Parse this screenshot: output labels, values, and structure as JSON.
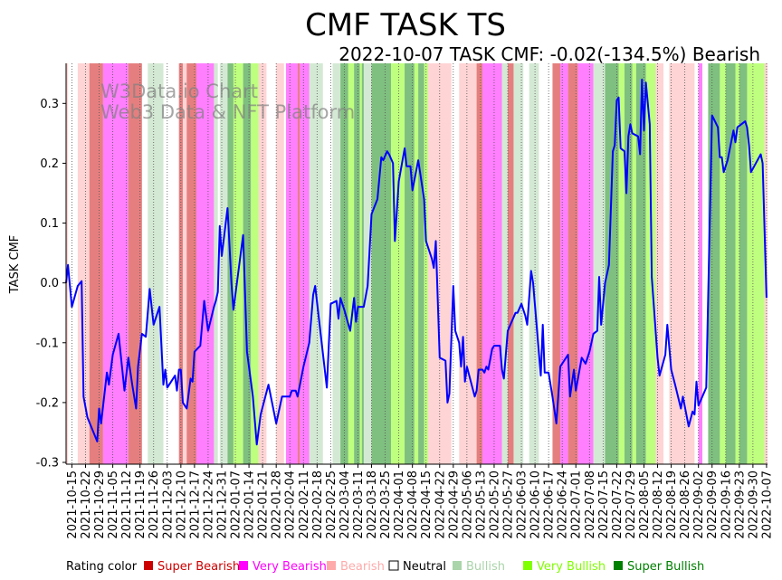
{
  "chart_data": {
    "type": "line",
    "title": "CMF TASK TS",
    "subtitle": "2022-10-07 TASK CMF: -0.02(-134.5%) Bearish",
    "ylabel": "TASK CMF",
    "xlabel": "",
    "x_unit": "day index, day 0 = 2021-10-12",
    "xlim": [
      0,
      360.5
    ],
    "ylim": [
      -0.303,
      0.367
    ],
    "yticks": [
      -0.3,
      -0.2,
      -0.1,
      0.0,
      0.1,
      0.2,
      0.3
    ],
    "ytick_labels": [
      "-0.3",
      "-0.2",
      "-0.1",
      "0.0",
      "0.1",
      "0.2",
      "0.3"
    ],
    "xtick_first_day": 3,
    "xtick_step_days": 7,
    "xtick_labels": [
      "2021-10-15",
      "2021-10-22",
      "2021-10-29",
      "2021-11-05",
      "2021-11-12",
      "2021-11-19",
      "2021-11-26",
      "2021-12-03",
      "2021-12-10",
      "2021-12-17",
      "2021-12-24",
      "2021-12-31",
      "2022-01-07",
      "2022-01-14",
      "2022-01-21",
      "2022-01-28",
      "2022-02-04",
      "2022-02-11",
      "2022-02-18",
      "2022-02-25",
      "2022-03-04",
      "2022-03-11",
      "2022-03-18",
      "2022-03-25",
      "2022-04-01",
      "2022-04-08",
      "2022-04-15",
      "2022-04-22",
      "2022-04-29",
      "2022-05-06",
      "2022-05-13",
      "2022-05-20",
      "2022-05-27",
      "2022-06-03",
      "2022-06-10",
      "2022-06-17",
      "2022-06-24",
      "2022-07-01",
      "2022-07-08",
      "2022-07-15",
      "2022-07-22",
      "2022-07-29",
      "2022-08-05",
      "2022-08-12",
      "2022-08-19",
      "2022-08-26",
      "2022-09-02",
      "2022-09-09",
      "2022-09-16",
      "2022-09-23",
      "2022-09-30",
      "2022-10-07"
    ],
    "grid": "vertical dotted at x ticks",
    "line_color": "#0000ff",
    "series": [
      {
        "name": "TASK CMF",
        "points": [
          [
            0,
            0.0
          ],
          [
            1,
            0.03
          ],
          [
            3,
            -0.04
          ],
          [
            6,
            -0.005
          ],
          [
            8,
            0.003
          ],
          [
            9,
            -0.19
          ],
          [
            11,
            -0.225
          ],
          [
            16,
            -0.265
          ],
          [
            17,
            -0.21
          ],
          [
            18,
            -0.235
          ],
          [
            21,
            -0.15
          ],
          [
            22,
            -0.17
          ],
          [
            24,
            -0.12
          ],
          [
            27,
            -0.085
          ],
          [
            30,
            -0.18
          ],
          [
            32,
            -0.125
          ],
          [
            34,
            -0.17
          ],
          [
            36,
            -0.21
          ],
          [
            37,
            -0.14
          ],
          [
            39,
            -0.085
          ],
          [
            41,
            -0.09
          ],
          [
            43,
            -0.01
          ],
          [
            45,
            -0.07
          ],
          [
            48,
            -0.04
          ],
          [
            50,
            -0.17
          ],
          [
            51,
            -0.145
          ],
          [
            52,
            -0.175
          ],
          [
            56,
            -0.155
          ],
          [
            57,
            -0.18
          ],
          [
            58,
            -0.145
          ],
          [
            59,
            -0.145
          ],
          [
            60,
            -0.2
          ],
          [
            62,
            -0.21
          ],
          [
            64,
            -0.16
          ],
          [
            65,
            -0.165
          ],
          [
            66,
            -0.115
          ],
          [
            69,
            -0.105
          ],
          [
            71,
            -0.03
          ],
          [
            73,
            -0.08
          ],
          [
            76,
            -0.04
          ],
          [
            77,
            -0.03
          ],
          [
            78,
            -0.015
          ],
          [
            79,
            0.095
          ],
          [
            80,
            0.045
          ],
          [
            83,
            0.125
          ],
          [
            85,
            0.0
          ],
          [
            86,
            -0.045
          ],
          [
            91,
            0.08
          ],
          [
            93,
            -0.115
          ],
          [
            96,
            -0.19
          ],
          [
            98,
            -0.27
          ],
          [
            100,
            -0.22
          ],
          [
            104,
            -0.17
          ],
          [
            108,
            -0.235
          ],
          [
            111,
            -0.19
          ],
          [
            115,
            -0.19
          ],
          [
            116,
            -0.18
          ],
          [
            118,
            -0.18
          ],
          [
            119,
            -0.19
          ],
          [
            122,
            -0.14
          ],
          [
            125,
            -0.1
          ],
          [
            127,
            -0.02
          ],
          [
            128,
            -0.005
          ],
          [
            134,
            -0.175
          ],
          [
            136,
            -0.035
          ],
          [
            139,
            -0.03
          ],
          [
            140,
            -0.06
          ],
          [
            141,
            -0.025
          ],
          [
            143,
            -0.045
          ],
          [
            146,
            -0.08
          ],
          [
            148,
            -0.025
          ],
          [
            149,
            -0.065
          ],
          [
            150,
            -0.04
          ],
          [
            153,
            -0.04
          ],
          [
            155,
            -0.005
          ],
          [
            157,
            0.115
          ],
          [
            160,
            0.14
          ],
          [
            162,
            0.21
          ],
          [
            163,
            0.205
          ],
          [
            165,
            0.22
          ],
          [
            166,
            0.215
          ],
          [
            168,
            0.2
          ],
          [
            169,
            0.07
          ],
          [
            171,
            0.17
          ],
          [
            174,
            0.225
          ],
          [
            175,
            0.195
          ],
          [
            177,
            0.195
          ],
          [
            178,
            0.155
          ],
          [
            181,
            0.205
          ],
          [
            184,
            0.14
          ],
          [
            185,
            0.07
          ],
          [
            188,
            0.04
          ],
          [
            189,
            0.025
          ],
          [
            190,
            0.07
          ],
          [
            192,
            -0.125
          ],
          [
            195,
            -0.13
          ],
          [
            196,
            -0.2
          ],
          [
            197,
            -0.185
          ],
          [
            199,
            -0.005
          ],
          [
            200,
            -0.08
          ],
          [
            202,
            -0.1
          ],
          [
            203,
            -0.14
          ],
          [
            204,
            -0.09
          ],
          [
            205,
            -0.165
          ],
          [
            206,
            -0.14
          ],
          [
            208,
            -0.165
          ],
          [
            210,
            -0.19
          ],
          [
            211,
            -0.18
          ],
          [
            212,
            -0.145
          ],
          [
            214,
            -0.145
          ],
          [
            215,
            -0.15
          ],
          [
            216,
            -0.14
          ],
          [
            217,
            -0.145
          ],
          [
            219,
            -0.11
          ],
          [
            220,
            -0.105
          ],
          [
            223,
            -0.105
          ],
          [
            224,
            -0.145
          ],
          [
            225,
            -0.16
          ],
          [
            227,
            -0.08
          ],
          [
            231,
            -0.05
          ],
          [
            232,
            -0.05
          ],
          [
            234,
            -0.035
          ],
          [
            236,
            -0.055
          ],
          [
            237,
            -0.07
          ],
          [
            239,
            0.02
          ],
          [
            240,
            0.0
          ],
          [
            244,
            -0.155
          ],
          [
            245,
            -0.07
          ],
          [
            246,
            -0.15
          ],
          [
            248,
            -0.15
          ],
          [
            250,
            -0.19
          ],
          [
            252,
            -0.235
          ],
          [
            254,
            -0.14
          ],
          [
            258,
            -0.12
          ],
          [
            259,
            -0.19
          ],
          [
            261,
            -0.145
          ],
          [
            262,
            -0.18
          ],
          [
            265,
            -0.125
          ],
          [
            267,
            -0.135
          ],
          [
            269,
            -0.115
          ],
          [
            271,
            -0.085
          ],
          [
            273,
            -0.08
          ],
          [
            274,
            0.01
          ],
          [
            275,
            -0.07
          ],
          [
            277,
            0.0
          ],
          [
            279,
            0.03
          ],
          [
            281,
            0.22
          ],
          [
            282,
            0.23
          ],
          [
            283,
            0.305
          ],
          [
            284,
            0.31
          ],
          [
            285,
            0.225
          ],
          [
            287,
            0.22
          ],
          [
            288,
            0.15
          ],
          [
            289,
            0.245
          ],
          [
            290,
            0.265
          ],
          [
            291,
            0.25
          ],
          [
            294,
            0.245
          ],
          [
            295,
            0.215
          ],
          [
            296,
            0.34
          ],
          [
            297,
            0.255
          ],
          [
            298,
            0.335
          ],
          [
            300,
            0.265
          ],
          [
            301,
            0.01
          ],
          [
            304,
            -0.125
          ],
          [
            305,
            -0.155
          ],
          [
            308,
            -0.12
          ],
          [
            309,
            -0.07
          ],
          [
            311,
            -0.145
          ],
          [
            313,
            -0.17
          ],
          [
            316,
            -0.21
          ],
          [
            317,
            -0.19
          ],
          [
            320,
            -0.24
          ],
          [
            322,
            -0.215
          ],
          [
            323,
            -0.22
          ],
          [
            324,
            -0.165
          ],
          [
            325,
            -0.205
          ],
          [
            329,
            -0.175
          ],
          [
            332,
            0.28
          ],
          [
            335,
            0.26
          ],
          [
            336,
            0.21
          ],
          [
            337,
            0.21
          ],
          [
            338,
            0.185
          ],
          [
            340,
            0.205
          ],
          [
            343,
            0.255
          ],
          [
            344,
            0.235
          ],
          [
            345,
            0.26
          ],
          [
            349,
            0.27
          ],
          [
            350,
            0.26
          ],
          [
            351,
            0.23
          ],
          [
            352,
            0.185
          ],
          [
            357,
            0.215
          ],
          [
            358,
            0.2
          ],
          [
            360,
            -0.025
          ]
        ]
      }
    ],
    "rating_bands": [
      [
        0,
        1,
        "B"
      ],
      [
        1,
        6,
        "N"
      ],
      [
        6,
        12,
        "B"
      ],
      [
        12,
        19,
        "SB"
      ],
      [
        19,
        32,
        "VB"
      ],
      [
        32,
        39,
        "SB"
      ],
      [
        39,
        42,
        "N"
      ],
      [
        42,
        50,
        "BU"
      ],
      [
        50,
        58,
        "N"
      ],
      [
        58,
        60,
        "SB"
      ],
      [
        60,
        62,
        "B"
      ],
      [
        62,
        67,
        "SB"
      ],
      [
        67,
        76,
        "VB"
      ],
      [
        76,
        78,
        "BU"
      ],
      [
        78,
        79,
        "N"
      ],
      [
        79,
        83,
        "BU"
      ],
      [
        83,
        86,
        "SBU"
      ],
      [
        86,
        91,
        "VBU"
      ],
      [
        91,
        95,
        "SBU"
      ],
      [
        95,
        99,
        "VBU"
      ],
      [
        99,
        103,
        "B"
      ],
      [
        103,
        108,
        "N"
      ],
      [
        108,
        112,
        "B"
      ],
      [
        112,
        113,
        "N"
      ],
      [
        113,
        119,
        "VB"
      ],
      [
        119,
        120,
        "SB"
      ],
      [
        120,
        125,
        "VB"
      ],
      [
        125,
        132,
        "BU"
      ],
      [
        132,
        137,
        "N"
      ],
      [
        137,
        141,
        "BU"
      ],
      [
        141,
        145,
        "SBU"
      ],
      [
        145,
        148,
        "VBU"
      ],
      [
        148,
        151,
        "SBU"
      ],
      [
        151,
        152,
        "VBU"
      ],
      [
        152,
        153,
        "SBU"
      ],
      [
        153,
        157,
        "BU"
      ],
      [
        157,
        167,
        "SBU"
      ],
      [
        167,
        174,
        "VBU"
      ],
      [
        174,
        179,
        "SBU"
      ],
      [
        179,
        181,
        "VBU"
      ],
      [
        181,
        184,
        "SBU"
      ],
      [
        184,
        186,
        "VBU"
      ],
      [
        186,
        198,
        "B"
      ],
      [
        198,
        202,
        "N"
      ],
      [
        202,
        211,
        "B"
      ],
      [
        211,
        214,
        "SB"
      ],
      [
        214,
        224,
        "VB"
      ],
      [
        224,
        227,
        "BU"
      ],
      [
        227,
        230,
        "SB"
      ],
      [
        230,
        235,
        "BU"
      ],
      [
        235,
        238,
        "N"
      ],
      [
        238,
        243,
        "BU"
      ],
      [
        243,
        250,
        "N"
      ],
      [
        250,
        254,
        "SB"
      ],
      [
        254,
        258,
        "VB"
      ],
      [
        258,
        263,
        "SB"
      ],
      [
        263,
        271,
        "VB"
      ],
      [
        271,
        277,
        "BU"
      ],
      [
        277,
        284,
        "SBU"
      ],
      [
        284,
        287,
        "VBU"
      ],
      [
        287,
        291,
        "SBU"
      ],
      [
        291,
        293,
        "VBU"
      ],
      [
        293,
        298,
        "SBU"
      ],
      [
        298,
        303,
        "VBU"
      ],
      [
        303,
        307,
        "B"
      ],
      [
        307,
        310,
        "N"
      ],
      [
        310,
        323,
        "B"
      ],
      [
        323,
        325,
        "N"
      ],
      [
        325,
        327,
        "VB"
      ],
      [
        327,
        330,
        "N"
      ],
      [
        330,
        336,
        "SBU"
      ],
      [
        336,
        339,
        "VBU"
      ],
      [
        339,
        344,
        "SBU"
      ],
      [
        344,
        346,
        "VBU"
      ],
      [
        346,
        350,
        "SBU"
      ],
      [
        350,
        359,
        "VBU"
      ],
      [
        359,
        360.5,
        "B"
      ]
    ],
    "legend": {
      "title": "Rating color",
      "placement": "bottom",
      "entries": [
        {
          "code": "SB",
          "label": "Super Bearish",
          "color": "#cc0000"
        },
        {
          "code": "VB",
          "label": "Very Bearish",
          "color": "#ff00ff"
        },
        {
          "code": "B",
          "label": "Bearish",
          "color": "#ffaaaa"
        },
        {
          "code": "N",
          "label": "Neutral",
          "color": "#ffffff"
        },
        {
          "code": "BU",
          "label": "Bullish",
          "color": "#aad4aa"
        },
        {
          "code": "VBU",
          "label": "Very Bullish",
          "color": "#80ff00"
        },
        {
          "code": "SBU",
          "label": "Super Bullish",
          "color": "#008000"
        }
      ]
    },
    "watermark": [
      "W3Data.io Chart",
      "Web3 Data & NFT Platform"
    ]
  }
}
